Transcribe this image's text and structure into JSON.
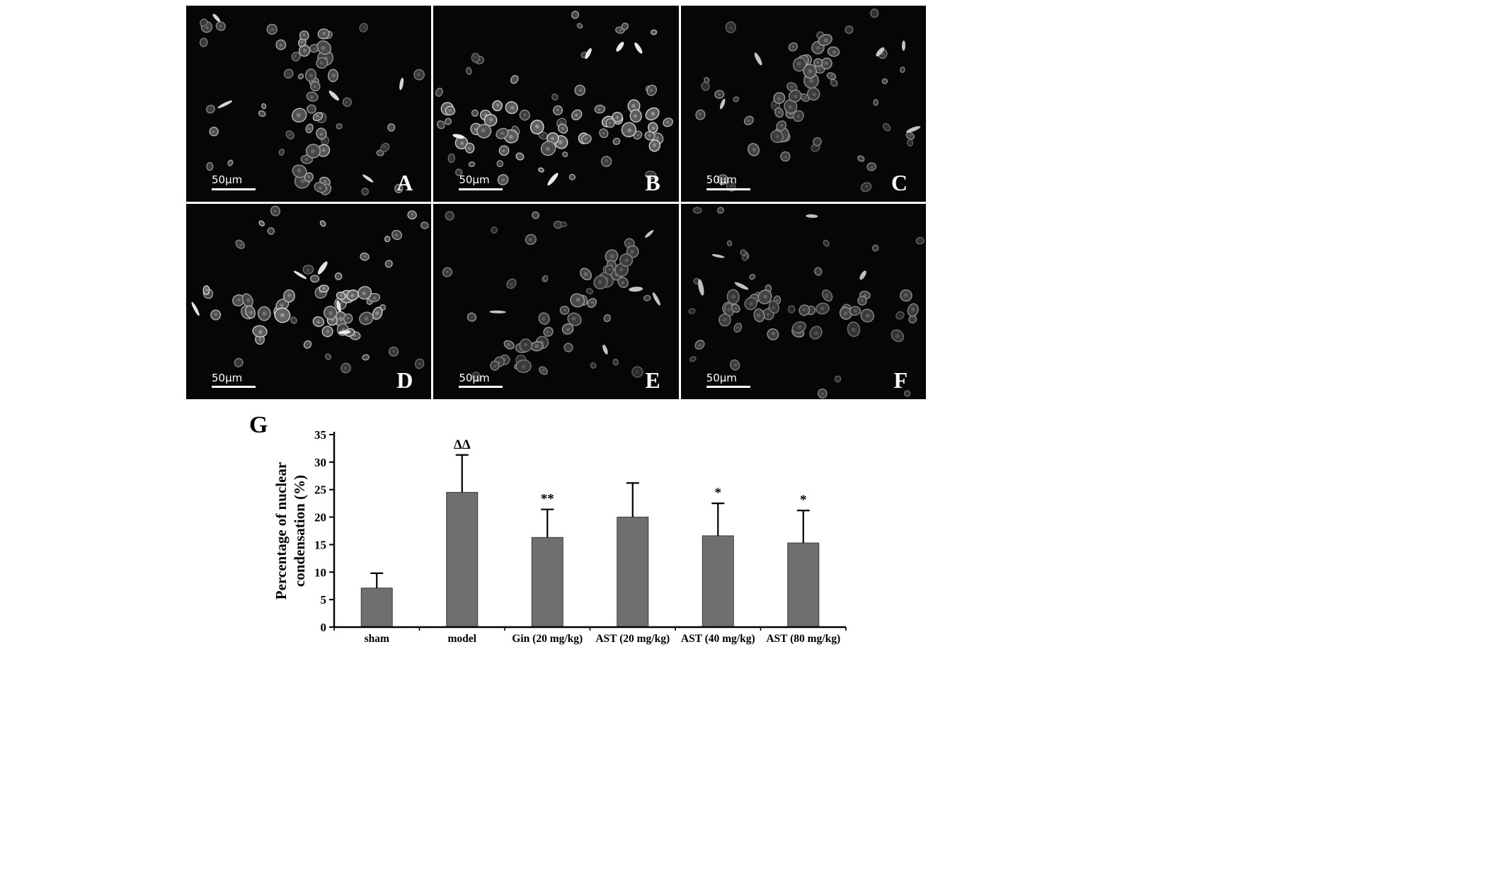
{
  "figure": {
    "panels": [
      {
        "label": "A",
        "scale_bar": "50µm"
      },
      {
        "label": "B",
        "scale_bar": "50µm"
      },
      {
        "label": "C",
        "scale_bar": "50µm"
      },
      {
        "label": "D",
        "scale_bar": "50µm"
      },
      {
        "label": "E",
        "scale_bar": "50µm"
      },
      {
        "label": "F",
        "scale_bar": "50µm"
      }
    ],
    "chart_panel_label": "G"
  },
  "chart_data": {
    "type": "bar",
    "categories": [
      "sham",
      "model",
      "Gin (20 mg/kg)",
      "AST (20 mg/kg)",
      "AST (40 mg/kg)",
      "AST (80 mg/kg)"
    ],
    "values": [
      7.1,
      24.5,
      16.3,
      20.0,
      16.6,
      15.3
    ],
    "errors_upper": [
      2.7,
      6.8,
      5.1,
      6.2,
      5.9,
      5.9
    ],
    "annotations": [
      "",
      "ΔΔ",
      "**",
      "",
      "*",
      "*"
    ],
    "title": "",
    "xlabel": "",
    "ylabel": "Percentage of nuclear condensation (%)",
    "ylim": [
      0,
      35
    ],
    "ytick_step": 5,
    "grid": false,
    "legend_position": "none",
    "bar_color": "#6f6f6f",
    "bar_edge_color": "#3a3a3a",
    "axis_color": "#000000"
  }
}
